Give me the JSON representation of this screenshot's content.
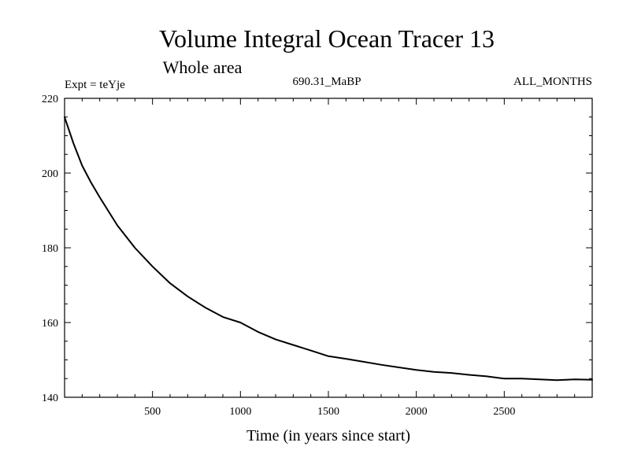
{
  "chart_data": {
    "type": "line",
    "title": "Volume Integral Ocean Tracer 13",
    "subtitle": "Whole area",
    "annotations": {
      "left": "Expt = teYje",
      "center": "690.31_MaBP",
      "right": "ALL_MONTHS"
    },
    "xlabel": "Time (in years since start)",
    "ylabel": "",
    "xlim": [
      0,
      3000
    ],
    "ylim": [
      140,
      220
    ],
    "xticks": [
      500,
      1000,
      1500,
      2000,
      2500
    ],
    "yticks": [
      140,
      160,
      180,
      200,
      220
    ],
    "grid": false,
    "series": [
      {
        "color": "#000000",
        "x": [
          0,
          50,
          100,
          150,
          200,
          300,
          400,
          500,
          600,
          700,
          800,
          900,
          1000,
          1100,
          1200,
          1300,
          1400,
          1500,
          1600,
          1700,
          1800,
          1900,
          2000,
          2100,
          2200,
          2300,
          2400,
          2500,
          2600,
          2700,
          2800,
          2900,
          3000
        ],
        "values": [
          215,
          208,
          202,
          197.5,
          193.5,
          186,
          180,
          175,
          170.5,
          167,
          164,
          161.5,
          160,
          157.5,
          155.5,
          154,
          152.5,
          151,
          150.3,
          149.5,
          148.7,
          148,
          147.3,
          146.8,
          146.5,
          146,
          145.6,
          145,
          145,
          144.8,
          144.6,
          144.8,
          144.7
        ]
      }
    ]
  }
}
